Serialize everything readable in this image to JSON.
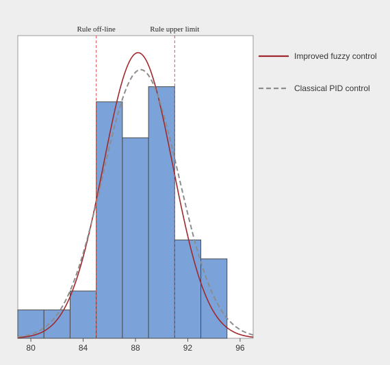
{
  "chart_data": {
    "type": "bar",
    "subtype": "histogram",
    "title": "",
    "xlabel": "",
    "ylabel": "",
    "xlim": [
      79,
      97
    ],
    "ylim": [
      0,
      16
    ],
    "x_ticks": [
      80,
      84,
      88,
      92,
      96
    ],
    "bins": [
      {
        "start": 79,
        "end": 81,
        "count": 1.5
      },
      {
        "start": 81,
        "end": 83,
        "count": 1.5
      },
      {
        "start": 83,
        "end": 85,
        "count": 2.5
      },
      {
        "start": 85,
        "end": 87,
        "count": 12.5
      },
      {
        "start": 87,
        "end": 89,
        "count": 10.6
      },
      {
        "start": 89,
        "end": 91,
        "count": 13.3
      },
      {
        "start": 91,
        "end": 93,
        "count": 5.2
      },
      {
        "start": 93,
        "end": 95,
        "count": 4.2
      }
    ],
    "bar_color": "#7ba3d9",
    "bar_edge_color": "#4a4a4a",
    "spec_lines": [
      {
        "label": "Rule off-line",
        "x": 85
      },
      {
        "label": "Rule upper limit",
        "x": 91
      }
    ],
    "spec_line_color": "#d9534f",
    "series": [
      {
        "name": "Improved fuzzy control",
        "style": "solid",
        "color": "#a0282c",
        "mean": 88.2,
        "sd": 2.65,
        "peak": 15.1
      },
      {
        "name": "Classical PID control",
        "style": "dashed",
        "color": "#8c8c8c",
        "mean": 88.4,
        "sd": 2.9,
        "peak": 14.2
      }
    ],
    "legend_position": "right"
  }
}
